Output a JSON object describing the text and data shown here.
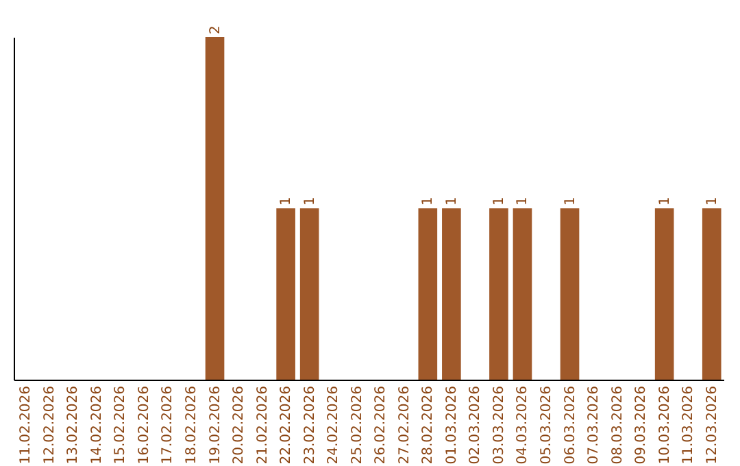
{
  "chart_data": {
    "type": "bar",
    "categories": [
      "11.02.2026",
      "12.02.2026",
      "13.02.2026",
      "14.02.2026",
      "15.02.2026",
      "16.02.2026",
      "17.02.2026",
      "18.02.2026",
      "19.02.2026",
      "20.02.2026",
      "21.02.2026",
      "22.02.2026",
      "23.02.2026",
      "24.02.2026",
      "25.02.2026",
      "26.02.2026",
      "27.02.2026",
      "28.02.2026",
      "01.03.2026",
      "02.03.2026",
      "03.03.2026",
      "04.03.2026",
      "05.03.2026",
      "06.03.2026",
      "07.03.2026",
      "08.03.2026",
      "09.03.2026",
      "10.03.2026",
      "11.03.2026",
      "12.03.2026"
    ],
    "values": [
      0,
      0,
      0,
      0,
      0,
      0,
      0,
      0,
      2,
      0,
      0,
      1,
      1,
      0,
      0,
      0,
      0,
      1,
      1,
      0,
      1,
      1,
      0,
      1,
      0,
      0,
      0,
      1,
      0,
      1
    ],
    "value_labels": [
      null,
      null,
      null,
      null,
      null,
      null,
      null,
      null,
      "2",
      null,
      null,
      "1",
      "1",
      null,
      null,
      null,
      null,
      "1",
      "1",
      null,
      "1",
      "1",
      null,
      "1",
      null,
      null,
      null,
      "1",
      null,
      "1"
    ],
    "color": "#a0592a",
    "tick_labels": "x"
  }
}
